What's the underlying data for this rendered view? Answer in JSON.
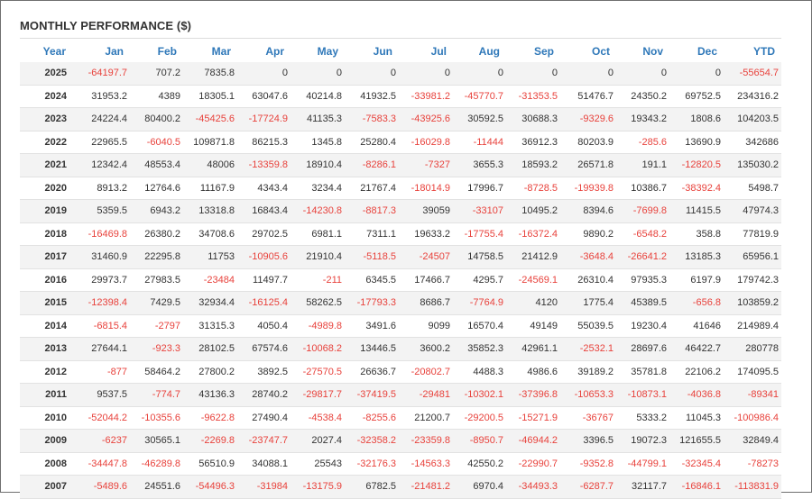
{
  "title": "MONTHLY PERFORMANCE ($)",
  "colors": {
    "header": "#2f78b9",
    "negative": "#e8423c",
    "text": "#333333",
    "stripe": "#f3f3f3"
  },
  "columns": [
    "Year",
    "Jan",
    "Feb",
    "Mar",
    "Apr",
    "May",
    "Jun",
    "Jul",
    "Aug",
    "Sep",
    "Oct",
    "Nov",
    "Dec",
    "YTD"
  ],
  "rows": [
    [
      "2025",
      "-64197.7",
      "707.2",
      "7835.8",
      "0",
      "0",
      "0",
      "0",
      "0",
      "0",
      "0",
      "0",
      "0",
      "-55654.7"
    ],
    [
      "2024",
      "31953.2",
      "4389",
      "18305.1",
      "63047.6",
      "40214.8",
      "41932.5",
      "-33981.2",
      "-45770.7",
      "-31353.5",
      "51476.7",
      "24350.2",
      "69752.5",
      "234316.2"
    ],
    [
      "2023",
      "24224.4",
      "80400.2",
      "-45425.6",
      "-17724.9",
      "41135.3",
      "-7583.3",
      "-43925.6",
      "30592.5",
      "30688.3",
      "-9329.6",
      "19343.2",
      "1808.6",
      "104203.5"
    ],
    [
      "2022",
      "22965.5",
      "-6040.5",
      "109871.8",
      "86215.3",
      "1345.8",
      "25280.4",
      "-16029.8",
      "-11444",
      "36912.3",
      "80203.9",
      "-285.6",
      "13690.9",
      "342686"
    ],
    [
      "2021",
      "12342.4",
      "48553.4",
      "48006",
      "-13359.8",
      "18910.4",
      "-8286.1",
      "-7327",
      "3655.3",
      "18593.2",
      "26571.8",
      "191.1",
      "-12820.5",
      "135030.2"
    ],
    [
      "2020",
      "8913.2",
      "12764.6",
      "11167.9",
      "4343.4",
      "3234.4",
      "21767.4",
      "-18014.9",
      "17996.7",
      "-8728.5",
      "-19939.8",
      "10386.7",
      "-38392.4",
      "5498.7"
    ],
    [
      "2019",
      "5359.5",
      "6943.2",
      "13318.8",
      "16843.4",
      "-14230.8",
      "-8817.3",
      "39059",
      "-33107",
      "10495.2",
      "8394.6",
      "-7699.8",
      "11415.5",
      "47974.3"
    ],
    [
      "2018",
      "-16469.8",
      "26380.2",
      "34708.6",
      "29702.5",
      "6981.1",
      "7311.1",
      "19633.2",
      "-17755.4",
      "-16372.4",
      "9890.2",
      "-6548.2",
      "358.8",
      "77819.9"
    ],
    [
      "2017",
      "31460.9",
      "22295.8",
      "11753",
      "-10905.6",
      "21910.4",
      "-5118.5",
      "-24507",
      "14758.5",
      "21412.9",
      "-3648.4",
      "-26641.2",
      "13185.3",
      "65956.1"
    ],
    [
      "2016",
      "29973.7",
      "27983.5",
      "-23484",
      "11497.7",
      "-211",
      "6345.5",
      "17466.7",
      "4295.7",
      "-24569.1",
      "26310.4",
      "97935.3",
      "6197.9",
      "179742.3"
    ],
    [
      "2015",
      "-12398.4",
      "7429.5",
      "32934.4",
      "-16125.4",
      "58262.5",
      "-17793.3",
      "8686.7",
      "-7764.9",
      "4120",
      "1775.4",
      "45389.5",
      "-656.8",
      "103859.2"
    ],
    [
      "2014",
      "-6815.4",
      "-2797",
      "31315.3",
      "4050.4",
      "-4989.8",
      "3491.6",
      "9099",
      "16570.4",
      "49149",
      "55039.5",
      "19230.4",
      "41646",
      "214989.4"
    ],
    [
      "2013",
      "27644.1",
      "-923.3",
      "28102.5",
      "67574.6",
      "-10068.2",
      "13446.5",
      "3600.2",
      "35852.3",
      "42961.1",
      "-2532.1",
      "28697.6",
      "46422.7",
      "280778"
    ],
    [
      "2012",
      "-877",
      "58464.2",
      "27800.2",
      "3892.5",
      "-27570.5",
      "26636.7",
      "-20802.7",
      "4488.3",
      "4986.6",
      "39189.2",
      "35781.8",
      "22106.2",
      "174095.5"
    ],
    [
      "2011",
      "9537.5",
      "-774.7",
      "43136.3",
      "28740.2",
      "-29817.7",
      "-37419.5",
      "-29481",
      "-10302.1",
      "-37396.8",
      "-10653.3",
      "-10873.1",
      "-4036.8",
      "-89341"
    ],
    [
      "2010",
      "-52044.2",
      "-10355.6",
      "-9622.8",
      "27490.4",
      "-4538.4",
      "-8255.6",
      "21200.7",
      "-29200.5",
      "-15271.9",
      "-36767",
      "5333.2",
      "11045.3",
      "-100986.4"
    ],
    [
      "2009",
      "-6237",
      "30565.1",
      "-2269.8",
      "-23747.7",
      "2027.4",
      "-32358.2",
      "-23359.8",
      "-8950.7",
      "-46944.2",
      "3396.5",
      "19072.3",
      "121655.5",
      "32849.4"
    ],
    [
      "2008",
      "-34447.8",
      "-46289.8",
      "56510.9",
      "34088.1",
      "25543",
      "-32176.3",
      "-14563.3",
      "42550.2",
      "-22990.7",
      "-9352.8",
      "-44799.1",
      "-32345.4",
      "-78273"
    ],
    [
      "2007",
      "-5489.6",
      "24551.6",
      "-54496.3",
      "-31984",
      "-13175.9",
      "6782.5",
      "-21481.2",
      "6970.4",
      "-34493.3",
      "-6287.7",
      "32117.7",
      "-16846.1",
      "-113831.9"
    ]
  ]
}
